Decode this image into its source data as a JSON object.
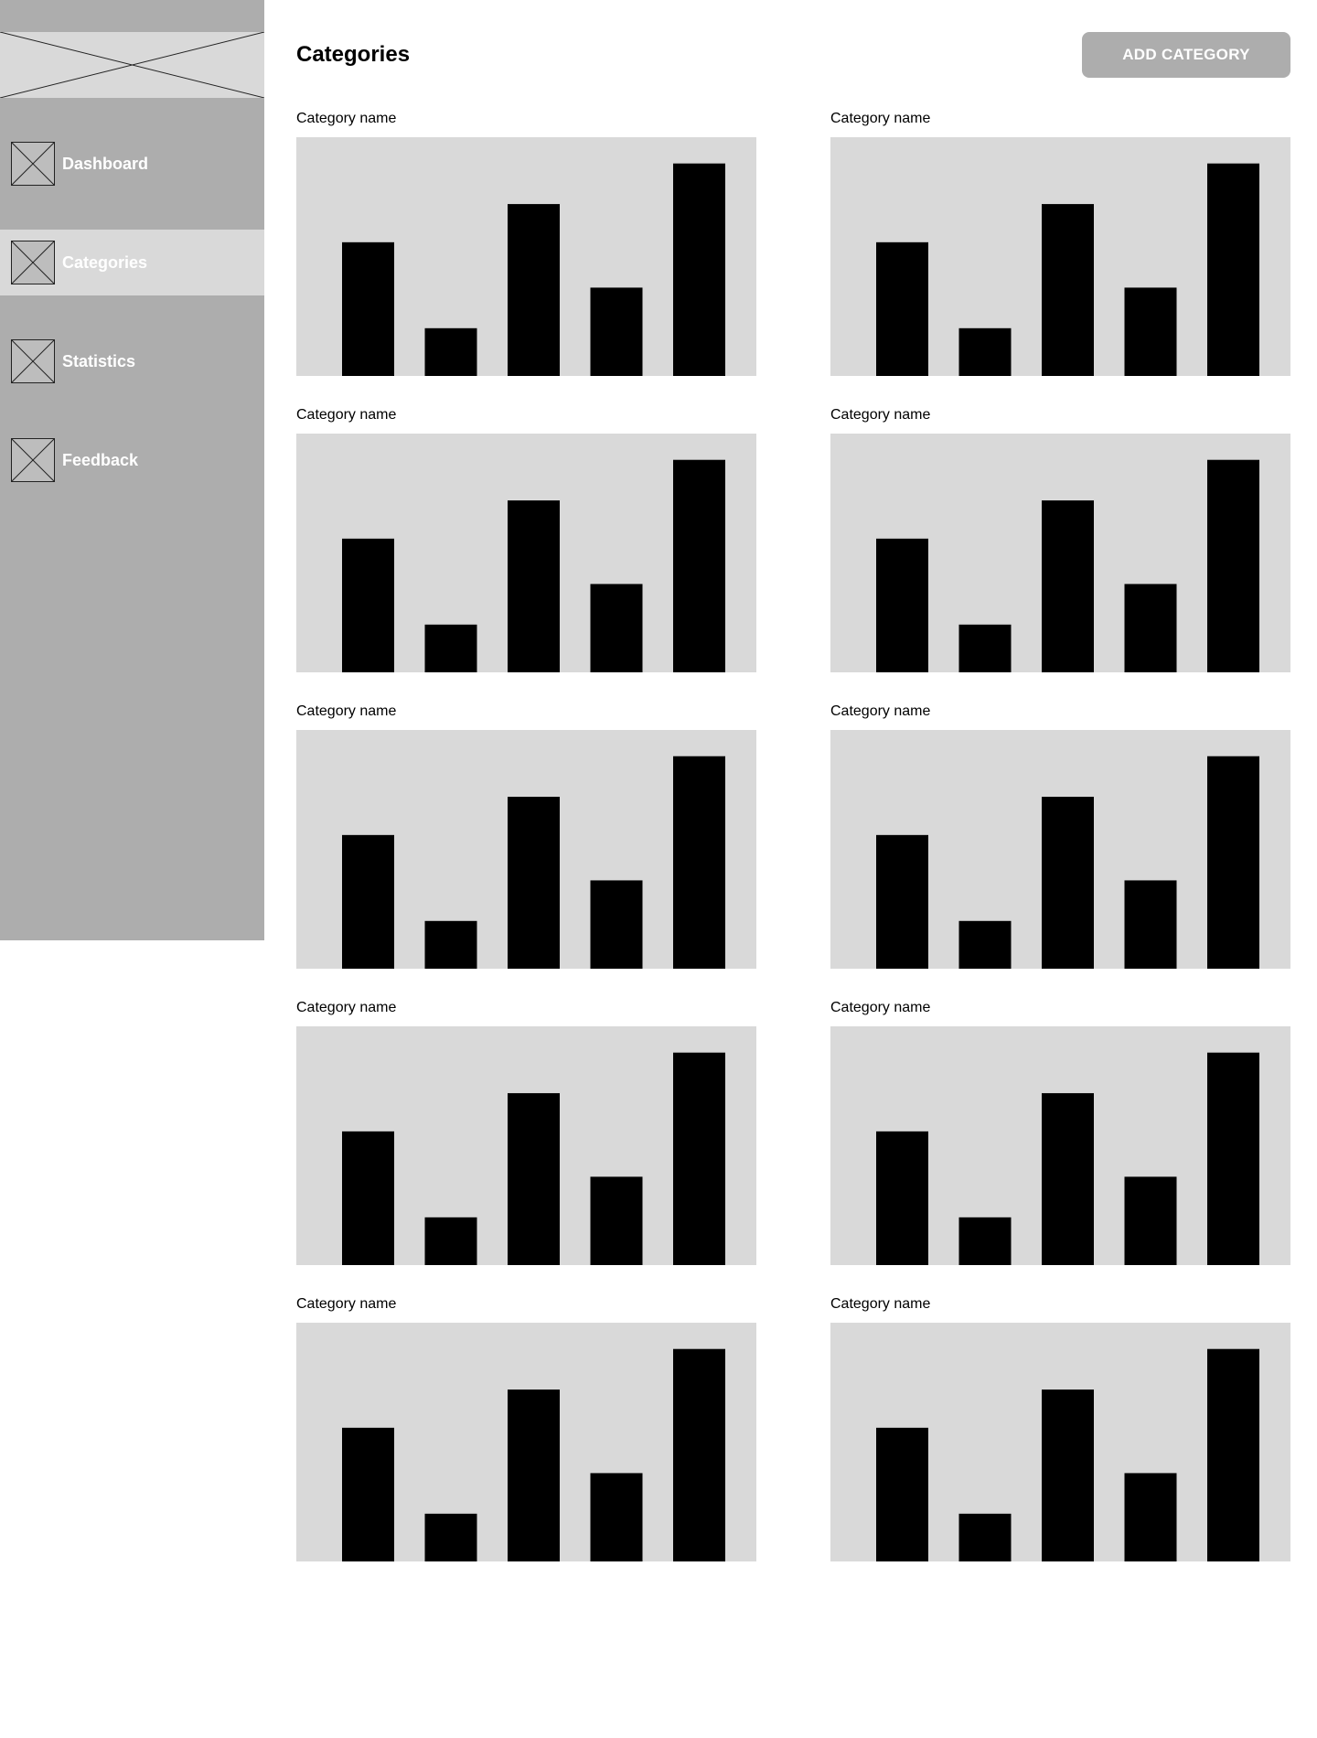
{
  "sidebar": {
    "logo_icon": "image-placeholder-icon",
    "items": [
      {
        "label": "Dashboard",
        "icon": "image-placeholder-icon",
        "active": false
      },
      {
        "label": "Categories",
        "icon": "image-placeholder-icon",
        "active": true
      },
      {
        "label": "Statistics",
        "icon": "image-placeholder-icon",
        "active": false
      },
      {
        "label": "Feedback",
        "icon": "image-placeholder-icon",
        "active": false
      }
    ]
  },
  "header": {
    "title": "Categories",
    "add_button_label": "ADD CATEGORY"
  },
  "colors": {
    "sidebar_bg": "#adadad",
    "active_item_bg": "#d9d9d9",
    "chart_bg": "#d9d9d9",
    "bar_color": "#000000",
    "button_bg": "#adadad"
  },
  "categories": [
    {
      "label": "Category name"
    },
    {
      "label": "Category name"
    },
    {
      "label": "Category name"
    },
    {
      "label": "Category name"
    },
    {
      "label": "Category name"
    },
    {
      "label": "Category name"
    },
    {
      "label": "Category name"
    },
    {
      "label": "Category name"
    },
    {
      "label": "Category name"
    },
    {
      "label": "Category name"
    }
  ],
  "chart_data": {
    "type": "bar",
    "categories": [
      "",
      "",
      "",
      "",
      ""
    ],
    "values": [
      0.56,
      0.2,
      0.72,
      0.37,
      0.89
    ],
    "ylim": [
      0,
      1
    ],
    "grid": false
  }
}
